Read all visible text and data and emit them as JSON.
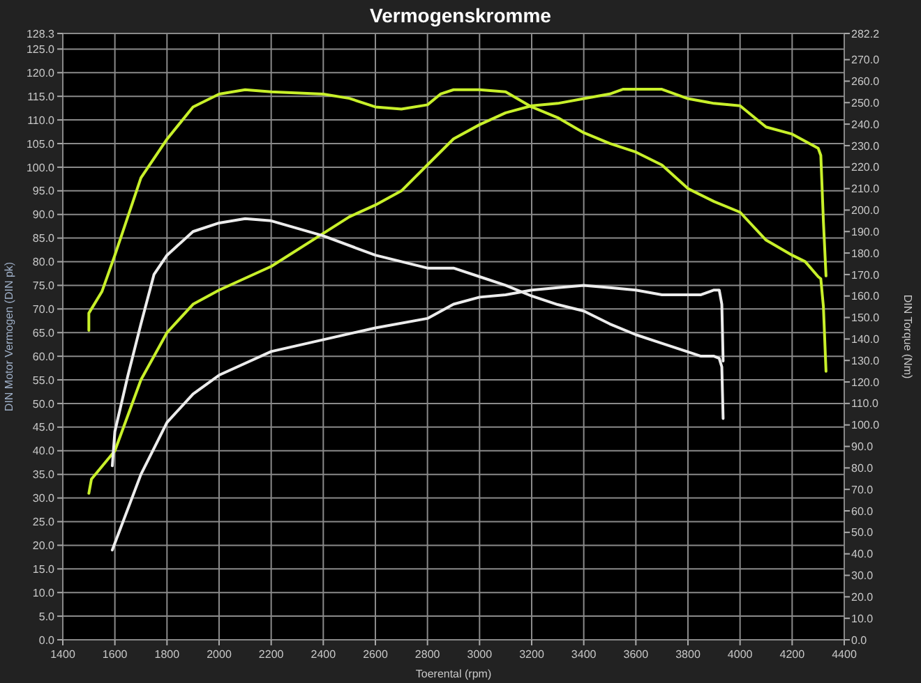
{
  "chart_data": {
    "type": "line",
    "title": "Vermogenskromme",
    "xlabel": "Toerental (rpm)",
    "ylabel": "DIN Motor Vermogen (DIN pk)",
    "y2label": "DIN Torque (Nm)",
    "xlim": [
      1400,
      4400
    ],
    "xticks": [
      1400,
      1600,
      1800,
      2000,
      2200,
      2400,
      2600,
      2800,
      3000,
      3200,
      3400,
      3600,
      3800,
      4000,
      4200,
      4400
    ],
    "ylim": [
      0,
      128.3
    ],
    "yticks": [
      {
        "value": 0,
        "label": "0.0"
      },
      {
        "value": 5,
        "label": "5.0"
      },
      {
        "value": 10,
        "label": "10.0"
      },
      {
        "value": 15,
        "label": "15.0"
      },
      {
        "value": 20,
        "label": "20.0"
      },
      {
        "value": 25,
        "label": "25.0"
      },
      {
        "value": 30,
        "label": "30.0"
      },
      {
        "value": 35,
        "label": "35.0"
      },
      {
        "value": 40,
        "label": "40.0"
      },
      {
        "value": 45,
        "label": "45.0"
      },
      {
        "value": 50,
        "label": "50.0"
      },
      {
        "value": 55,
        "label": "55.0"
      },
      {
        "value": 60,
        "label": "60.0"
      },
      {
        "value": 65,
        "label": "65.0"
      },
      {
        "value": 70,
        "label": "70.0"
      },
      {
        "value": 75,
        "label": "75.0"
      },
      {
        "value": 80,
        "label": "80.0"
      },
      {
        "value": 85,
        "label": "85.0"
      },
      {
        "value": 90,
        "label": "90.0"
      },
      {
        "value": 95,
        "label": "95.0"
      },
      {
        "value": 100,
        "label": "100.0"
      },
      {
        "value": 105,
        "label": "105.0"
      },
      {
        "value": 110,
        "label": "110.0"
      },
      {
        "value": 115,
        "label": "115.0"
      },
      {
        "value": 120,
        "label": "120.0"
      },
      {
        "value": 125,
        "label": "125.0"
      },
      128.3
    ],
    "y2lim": [
      0,
      282.2
    ],
    "y2ticks": [
      {
        "value": 0,
        "label": "0.0"
      },
      {
        "value": 10,
        "label": "10.0"
      },
      {
        "value": 20,
        "label": "20.0"
      },
      {
        "value": 30,
        "label": "30.0"
      },
      {
        "value": 40,
        "label": "40.0"
      },
      {
        "value": 50,
        "label": "50.0"
      },
      {
        "value": 60,
        "label": "60.0"
      },
      {
        "value": 70,
        "label": "70.0"
      },
      {
        "value": 80,
        "label": "80.0"
      },
      {
        "value": 90,
        "label": "90.0"
      },
      {
        "value": 100,
        "label": "100.0"
      },
      {
        "value": 110,
        "label": "110.0"
      },
      {
        "value": 120,
        "label": "120.0"
      },
      {
        "value": 130,
        "label": "130.0"
      },
      {
        "value": 140,
        "label": "140.0"
      },
      {
        "value": 150,
        "label": "150.0"
      },
      {
        "value": 160,
        "label": "160.0"
      },
      {
        "value": 170,
        "label": "170.0"
      },
      {
        "value": 180,
        "label": "180.0"
      },
      {
        "value": 190,
        "label": "190.0"
      },
      {
        "value": 200,
        "label": "200.0"
      },
      {
        "value": 210,
        "label": "210.0"
      },
      {
        "value": 220,
        "label": "220.0"
      },
      {
        "value": 230,
        "label": "230.0"
      },
      {
        "value": 240,
        "label": "240.0"
      },
      {
        "value": 250,
        "label": "250.0"
      },
      {
        "value": 260,
        "label": "260.0"
      },
      {
        "value": 270,
        "label": "270.0"
      },
      282.2
    ],
    "grid": true,
    "line_style": "solid",
    "series": [
      {
        "color": "#c8f02a",
        "axis": "y2",
        "x": [
          1500,
          1500,
          1550,
          1600,
          1700,
          1800,
          1900,
          2000,
          2100,
          2200,
          2400,
          2500,
          2600,
          2700,
          2800,
          2850,
          2900,
          3000,
          3100,
          3200,
          3300,
          3400,
          3500,
          3600,
          3700,
          3800,
          3900,
          4000,
          4100,
          4200,
          4250,
          4300,
          4310,
          4320,
          4330
        ],
        "values": [
          144,
          152,
          162,
          179,
          215,
          233,
          248,
          254,
          256,
          255,
          254,
          252,
          248,
          247,
          249,
          254,
          256,
          256,
          255,
          248,
          243,
          236,
          231,
          227,
          221,
          210,
          204,
          199,
          186,
          179,
          176,
          169,
          168,
          155,
          125
        ]
      },
      {
        "color": "#c8f02a",
        "x": [
          1500,
          1510,
          1600,
          1700,
          1800,
          1900,
          2000,
          2200,
          2400,
          2500,
          2600,
          2700,
          2800,
          2900,
          3000,
          3100,
          3200,
          3300,
          3400,
          3500,
          3550,
          3650,
          3700,
          3800,
          3900,
          4000,
          4100,
          4200,
          4300,
          4310,
          4320,
          4330
        ],
        "values": [
          31,
          34,
          40,
          55,
          65,
          71,
          74,
          79,
          86,
          89.5,
          92,
          95,
          100.5,
          106,
          109,
          111.5,
          113,
          113.5,
          114.5,
          115.5,
          116.5,
          116.5,
          116.5,
          114.5,
          113.5,
          113,
          108.5,
          107,
          104,
          102.5,
          88.5,
          77
        ]
      },
      {
        "color": "#ececec",
        "axis": "y2",
        "x": [
          1590,
          1600,
          1650,
          1700,
          1750,
          1800,
          1900,
          2000,
          2100,
          2200,
          2400,
          2600,
          2800,
          2900,
          3000,
          3100,
          3200,
          3300,
          3400,
          3500,
          3600,
          3700,
          3800,
          3850,
          3900,
          3920,
          3930,
          3935
        ],
        "values": [
          81,
          97,
          123,
          147,
          170,
          179,
          190,
          194,
          196,
          195,
          188,
          179,
          173,
          173,
          169,
          165,
          160,
          156,
          153,
          147,
          142,
          138,
          134,
          132,
          132,
          131,
          127,
          103
        ]
      },
      {
        "color": "#ececec",
        "x": [
          1590,
          1700,
          1800,
          1900,
          2000,
          2200,
          2400,
          2600,
          2800,
          2900,
          3000,
          3100,
          3200,
          3300,
          3400,
          3500,
          3600,
          3700,
          3800,
          3850,
          3900,
          3920,
          3930,
          3935
        ],
        "values": [
          19,
          35,
          46,
          52,
          56,
          61,
          63.5,
          66,
          68,
          71,
          72.5,
          73,
          74,
          74.5,
          75,
          74.5,
          74,
          73,
          73,
          73,
          74,
          74,
          71,
          59
        ]
      }
    ]
  }
}
